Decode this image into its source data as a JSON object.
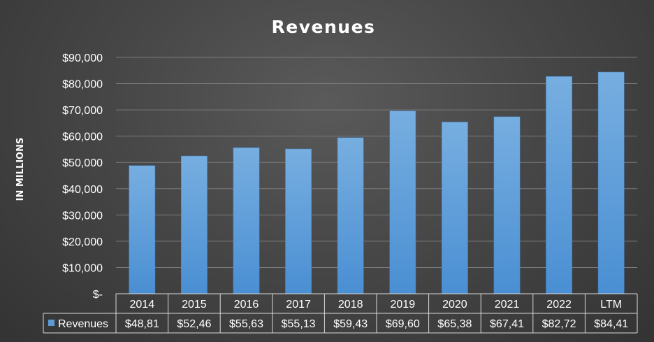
{
  "chart_data": {
    "type": "bar",
    "title": "Revenues",
    "ylabel": "IN MILLIONS",
    "xlabel": "",
    "ylim": [
      0,
      90000
    ],
    "y_ticks": [
      {
        "value": 0,
        "label": "$-"
      },
      {
        "value": 10000,
        "label": "$10,000"
      },
      {
        "value": 20000,
        "label": "$20,000"
      },
      {
        "value": 30000,
        "label": "$30,000"
      },
      {
        "value": 40000,
        "label": "$40,000"
      },
      {
        "value": 50000,
        "label": "$50,000"
      },
      {
        "value": 60000,
        "label": "$60,000"
      },
      {
        "value": 70000,
        "label": "$70,000"
      },
      {
        "value": 80000,
        "label": "$80,000"
      },
      {
        "value": 90000,
        "label": "$90,000"
      }
    ],
    "grid": true,
    "categories": [
      "2014",
      "2015",
      "2016",
      "2017",
      "2018",
      "2019",
      "2020",
      "2021",
      "2022",
      "LTM"
    ],
    "series": [
      {
        "name": "Revenues",
        "color": "#5b9bd5",
        "values": [
          48810,
          52460,
          55630,
          55130,
          59430,
          69600,
          65380,
          67410,
          82720,
          84410
        ],
        "table_labels": [
          "$48,81",
          "$52,46",
          "$55,63",
          "$55,13",
          "$59,43",
          "$69,60",
          "$65,38",
          "$67,41",
          "$82,72",
          "$84,41"
        ]
      }
    ],
    "legend": "data-table"
  }
}
